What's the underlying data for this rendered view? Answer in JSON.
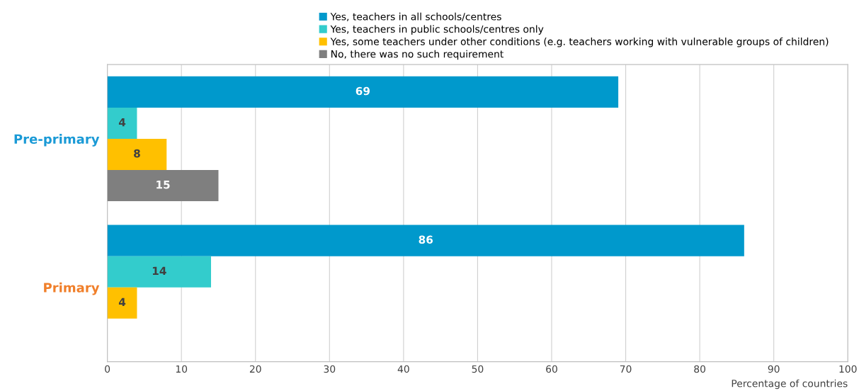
{
  "chart_data": {
    "type": "bar",
    "orientation": "horizontal",
    "categories": [
      "Pre-primary",
      "Primary"
    ],
    "series": [
      {
        "name": "Yes, teachers in all schools/centres",
        "color": "#0099cc",
        "values": [
          69,
          86
        ]
      },
      {
        "name": "Yes, teachers in public schools/centres only",
        "color": "#33cccc",
        "values": [
          4,
          14
        ]
      },
      {
        "name": "Yes, some teachers under other conditions (e.g. teachers working with vulnerable groups of children)",
        "color": "#ffc000",
        "values": [
          8,
          4
        ]
      },
      {
        "name": "No, there was no such requirement",
        "color": "#7f7f7f",
        "values": [
          15,
          null
        ]
      }
    ],
    "xlabel": "Percentage of countries",
    "xlim": [
      0,
      100
    ],
    "xticks": [
      0,
      10,
      20,
      30,
      40,
      50,
      60,
      70,
      80,
      90,
      100
    ],
    "grid": "x",
    "legend": "top",
    "data_labels": true
  }
}
